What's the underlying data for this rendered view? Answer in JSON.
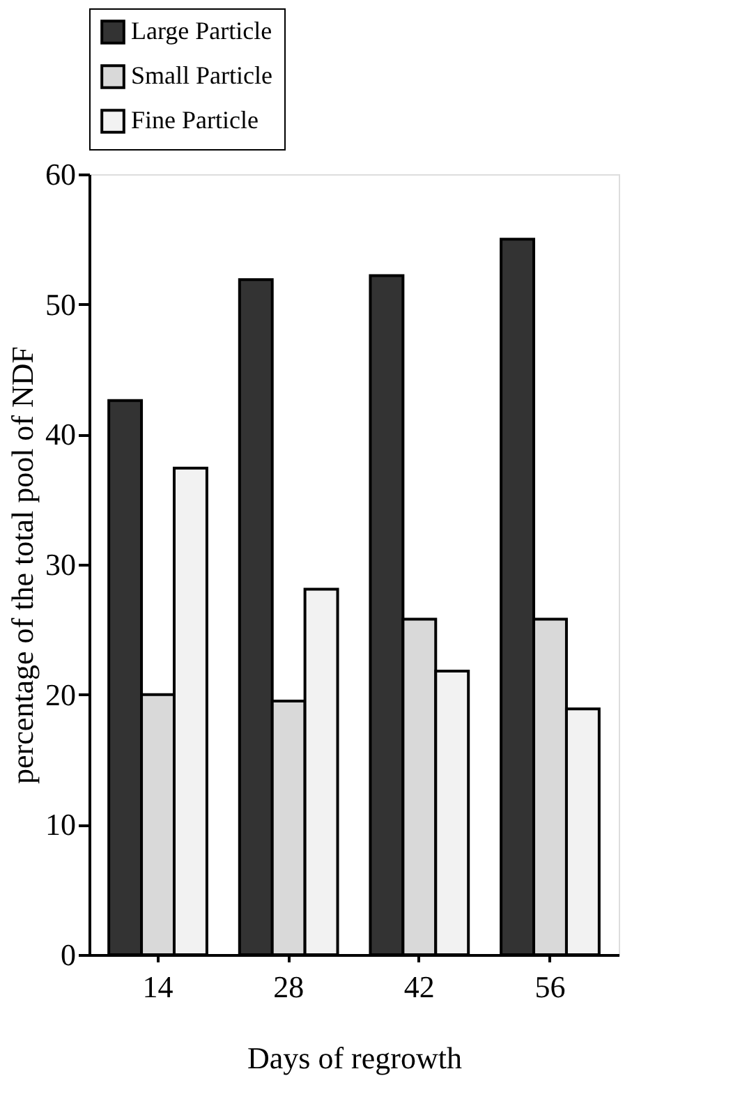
{
  "chart_data": {
    "type": "bar",
    "xlabel": "Days of regrowth",
    "ylabel": "percentage of the total pool of NDF",
    "categories": [
      "14",
      "28",
      "42",
      "56"
    ],
    "series": [
      {
        "name": "Large Particle",
        "color": "#333333",
        "values": [
          42.6,
          51.9,
          52.2,
          55.0
        ]
      },
      {
        "name": "Small Particle",
        "color": "#d9d9d9",
        "values": [
          20.0,
          19.5,
          25.8,
          25.8
        ]
      },
      {
        "name": "Fine Particle",
        "color": "#f2f2f2",
        "values": [
          37.4,
          28.1,
          21.8,
          18.9
        ]
      }
    ],
    "ylim": [
      0,
      60
    ],
    "yticks": [
      0,
      10,
      20,
      30,
      40,
      50,
      60
    ],
    "grid": false,
    "legend": "top"
  }
}
